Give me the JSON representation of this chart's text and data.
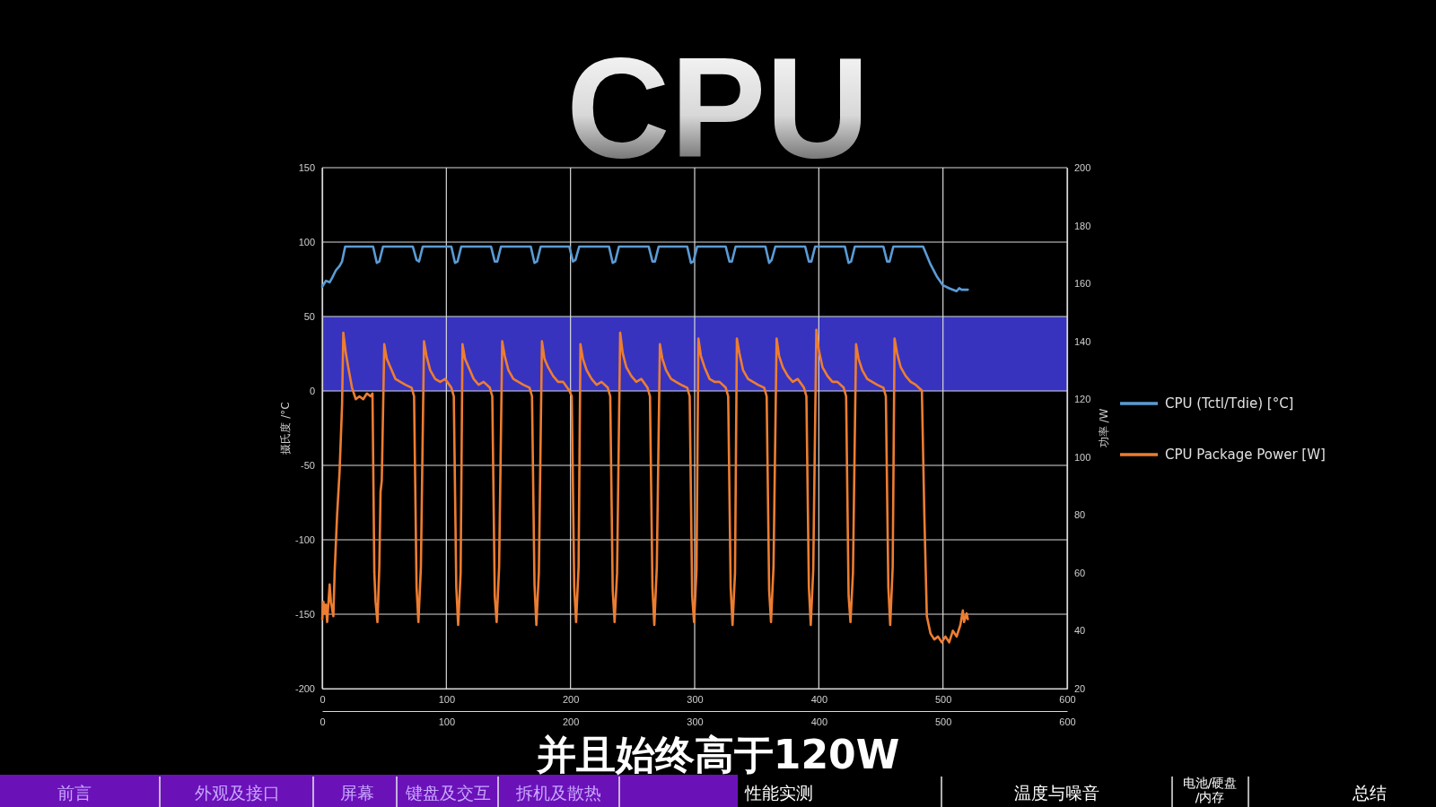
{
  "chart_data": {
    "type": "line",
    "title": "CPU",
    "ylabel": "摄氏度 /°C",
    "y2label": "功率 /W",
    "xlim": [
      0,
      600
    ],
    "xticks": [
      0,
      100,
      200,
      300,
      400,
      500,
      600
    ],
    "x2lim": [
      0,
      600
    ],
    "x2ticks": [
      0,
      100,
      200,
      300,
      400,
      500,
      600
    ],
    "ylim": [
      -200,
      150
    ],
    "yticks": [
      -200,
      -150,
      -100,
      -50,
      0,
      50,
      100,
      150
    ],
    "y2lim": [
      20,
      200
    ],
    "y2ticks": [
      20,
      40,
      60,
      80,
      100,
      120,
      140,
      160,
      180,
      200
    ],
    "grid": true,
    "legend": "right",
    "marker": "none",
    "line_style": "solid",
    "bands": [
      {
        "axis": "y",
        "from": 0,
        "to": 50,
        "color": "#3733be"
      }
    ],
    "series": [
      {
        "name": "CPU (Tctl/Tdie) [°C]",
        "color": "#5b9bd5",
        "x": [
          0,
          3,
          6,
          8,
          11,
          14,
          16,
          18.5,
          41,
          44,
          46,
          49,
          73,
          76,
          78,
          81,
          104,
          107,
          109,
          112,
          136,
          139,
          141,
          144,
          168,
          171,
          173,
          176,
          199,
          202,
          204,
          207,
          231,
          234,
          236,
          239,
          263,
          266,
          268,
          271,
          294,
          297,
          299,
          302,
          325,
          328,
          330,
          333,
          357,
          360,
          362,
          365,
          389,
          392,
          394,
          397,
          421,
          424,
          426,
          429,
          452,
          455,
          457,
          460,
          484,
          490,
          495,
          500,
          505,
          511,
          513,
          515,
          520
        ],
        "values": [
          70,
          74,
          73,
          76,
          81,
          84,
          87,
          97,
          97,
          86,
          87,
          97,
          97,
          88,
          87,
          97,
          97,
          86,
          87,
          97,
          97,
          87,
          87,
          97,
          97,
          86,
          87,
          97,
          97,
          87,
          88,
          97,
          97,
          86,
          87,
          97,
          97,
          87,
          87,
          97,
          97,
          86,
          87,
          97,
          97,
          87,
          87,
          97,
          97,
          86,
          88,
          97,
          97,
          87,
          87,
          97,
          97,
          86,
          87,
          97,
          97,
          87,
          87,
          97,
          97,
          85,
          77,
          71,
          69,
          67,
          69,
          68,
          68
        ]
      },
      {
        "name": "CPU Package Power [W]",
        "color": "#ed7d31",
        "axis": "y2",
        "x": [
          0,
          1,
          2,
          3,
          4,
          6,
          7,
          9,
          10,
          12,
          14,
          16,
          17,
          19,
          21,
          24,
          27,
          30,
          33,
          36,
          39,
          40.5,
          42,
          43,
          44.5,
          46,
          47,
          48,
          50,
          52,
          55,
          59,
          63,
          67,
          72,
          74,
          76,
          77.5,
          79.5,
          82,
          84,
          87,
          91,
          95,
          99,
          104,
          106,
          108,
          109.5,
          111.5,
          113,
          115,
          118,
          122,
          126,
          130,
          135,
          137,
          139,
          140.5,
          142.5,
          145,
          147,
          150,
          154,
          158,
          162,
          167,
          169,
          171,
          172.5,
          174.5,
          177,
          179,
          182,
          186,
          190,
          194,
          199,
          201,
          203,
          204.5,
          206.5,
          208,
          210,
          213,
          217,
          221,
          225,
          230,
          232,
          234,
          235.5,
          237.5,
          240,
          242,
          245,
          249,
          253,
          257,
          262,
          264,
          266,
          267.5,
          269.5,
          272,
          274,
          277,
          281,
          285,
          289,
          294,
          296,
          298,
          299.5,
          301.5,
          303,
          305,
          308,
          312,
          316,
          320,
          325,
          327,
          329,
          330.5,
          332.5,
          334,
          336,
          339,
          343,
          347,
          351,
          356,
          358,
          360,
          361.5,
          363.5,
          366,
          368,
          371,
          375,
          379,
          383,
          388,
          390,
          392,
          393.5,
          395.5,
          398,
          400,
          403,
          407,
          411,
          415,
          420,
          422,
          424,
          425.5,
          427.5,
          430,
          432,
          435,
          439,
          443,
          447,
          452,
          454,
          456,
          457.5,
          459.5,
          461,
          463,
          466,
          470,
          474,
          478,
          483,
          485,
          487,
          490,
          493,
          496,
          499,
          502,
          505,
          508,
          511,
          514,
          516,
          517,
          519,
          520
        ],
        "values": [
          44,
          50,
          46,
          49,
          43,
          56,
          50,
          45,
          60,
          80,
          95,
          118,
          143,
          136,
          131,
          124,
          120,
          121,
          120,
          122,
          121,
          122,
          60,
          50,
          43,
          62,
          88,
          92,
          139,
          134,
          131,
          127,
          126,
          125,
          124,
          121,
          55,
          43,
          62,
          140,
          135,
          130,
          127,
          126,
          127,
          124,
          121,
          55,
          42,
          60,
          139,
          134,
          131,
          127,
          125,
          126,
          124,
          121,
          52,
          43,
          62,
          140,
          135,
          130,
          127,
          126,
          125,
          124,
          121,
          56,
          42,
          60,
          140,
          134,
          131,
          128,
          126,
          126,
          123,
          121,
          55,
          43,
          62,
          139,
          134,
          130,
          127,
          125,
          126,
          124,
          121,
          54,
          43,
          60,
          143,
          136,
          131,
          128,
          126,
          127,
          124,
          121,
          55,
          42,
          62,
          139,
          134,
          130,
          127,
          126,
          125,
          124,
          121,
          52,
          43,
          61,
          141,
          135,
          131,
          127,
          126,
          126,
          124,
          121,
          55,
          42,
          60,
          141,
          136,
          130,
          127,
          126,
          125,
          124,
          121,
          54,
          43,
          62,
          141,
          135,
          131,
          128,
          126,
          127,
          124,
          121,
          55,
          42,
          61,
          144,
          137,
          131,
          128,
          126,
          126,
          124,
          121,
          52,
          43,
          60,
          139,
          134,
          130,
          127,
          126,
          125,
          124,
          121,
          55,
          42,
          62,
          141,
          136,
          131,
          128,
          126,
          125,
          123,
          80,
          45,
          39,
          37,
          38,
          36,
          38,
          36,
          40,
          38,
          42,
          47,
          43,
          46,
          44
        ]
      }
    ],
    "annotations": [
      "并且始终高于120W",
      "前言",
      "外观及接口",
      "屏幕",
      "键盘及交互",
      "拆机及散热",
      "性能实测",
      "温度与噪音",
      "电池/硬盘\n/内存",
      "总结"
    ]
  }
}
